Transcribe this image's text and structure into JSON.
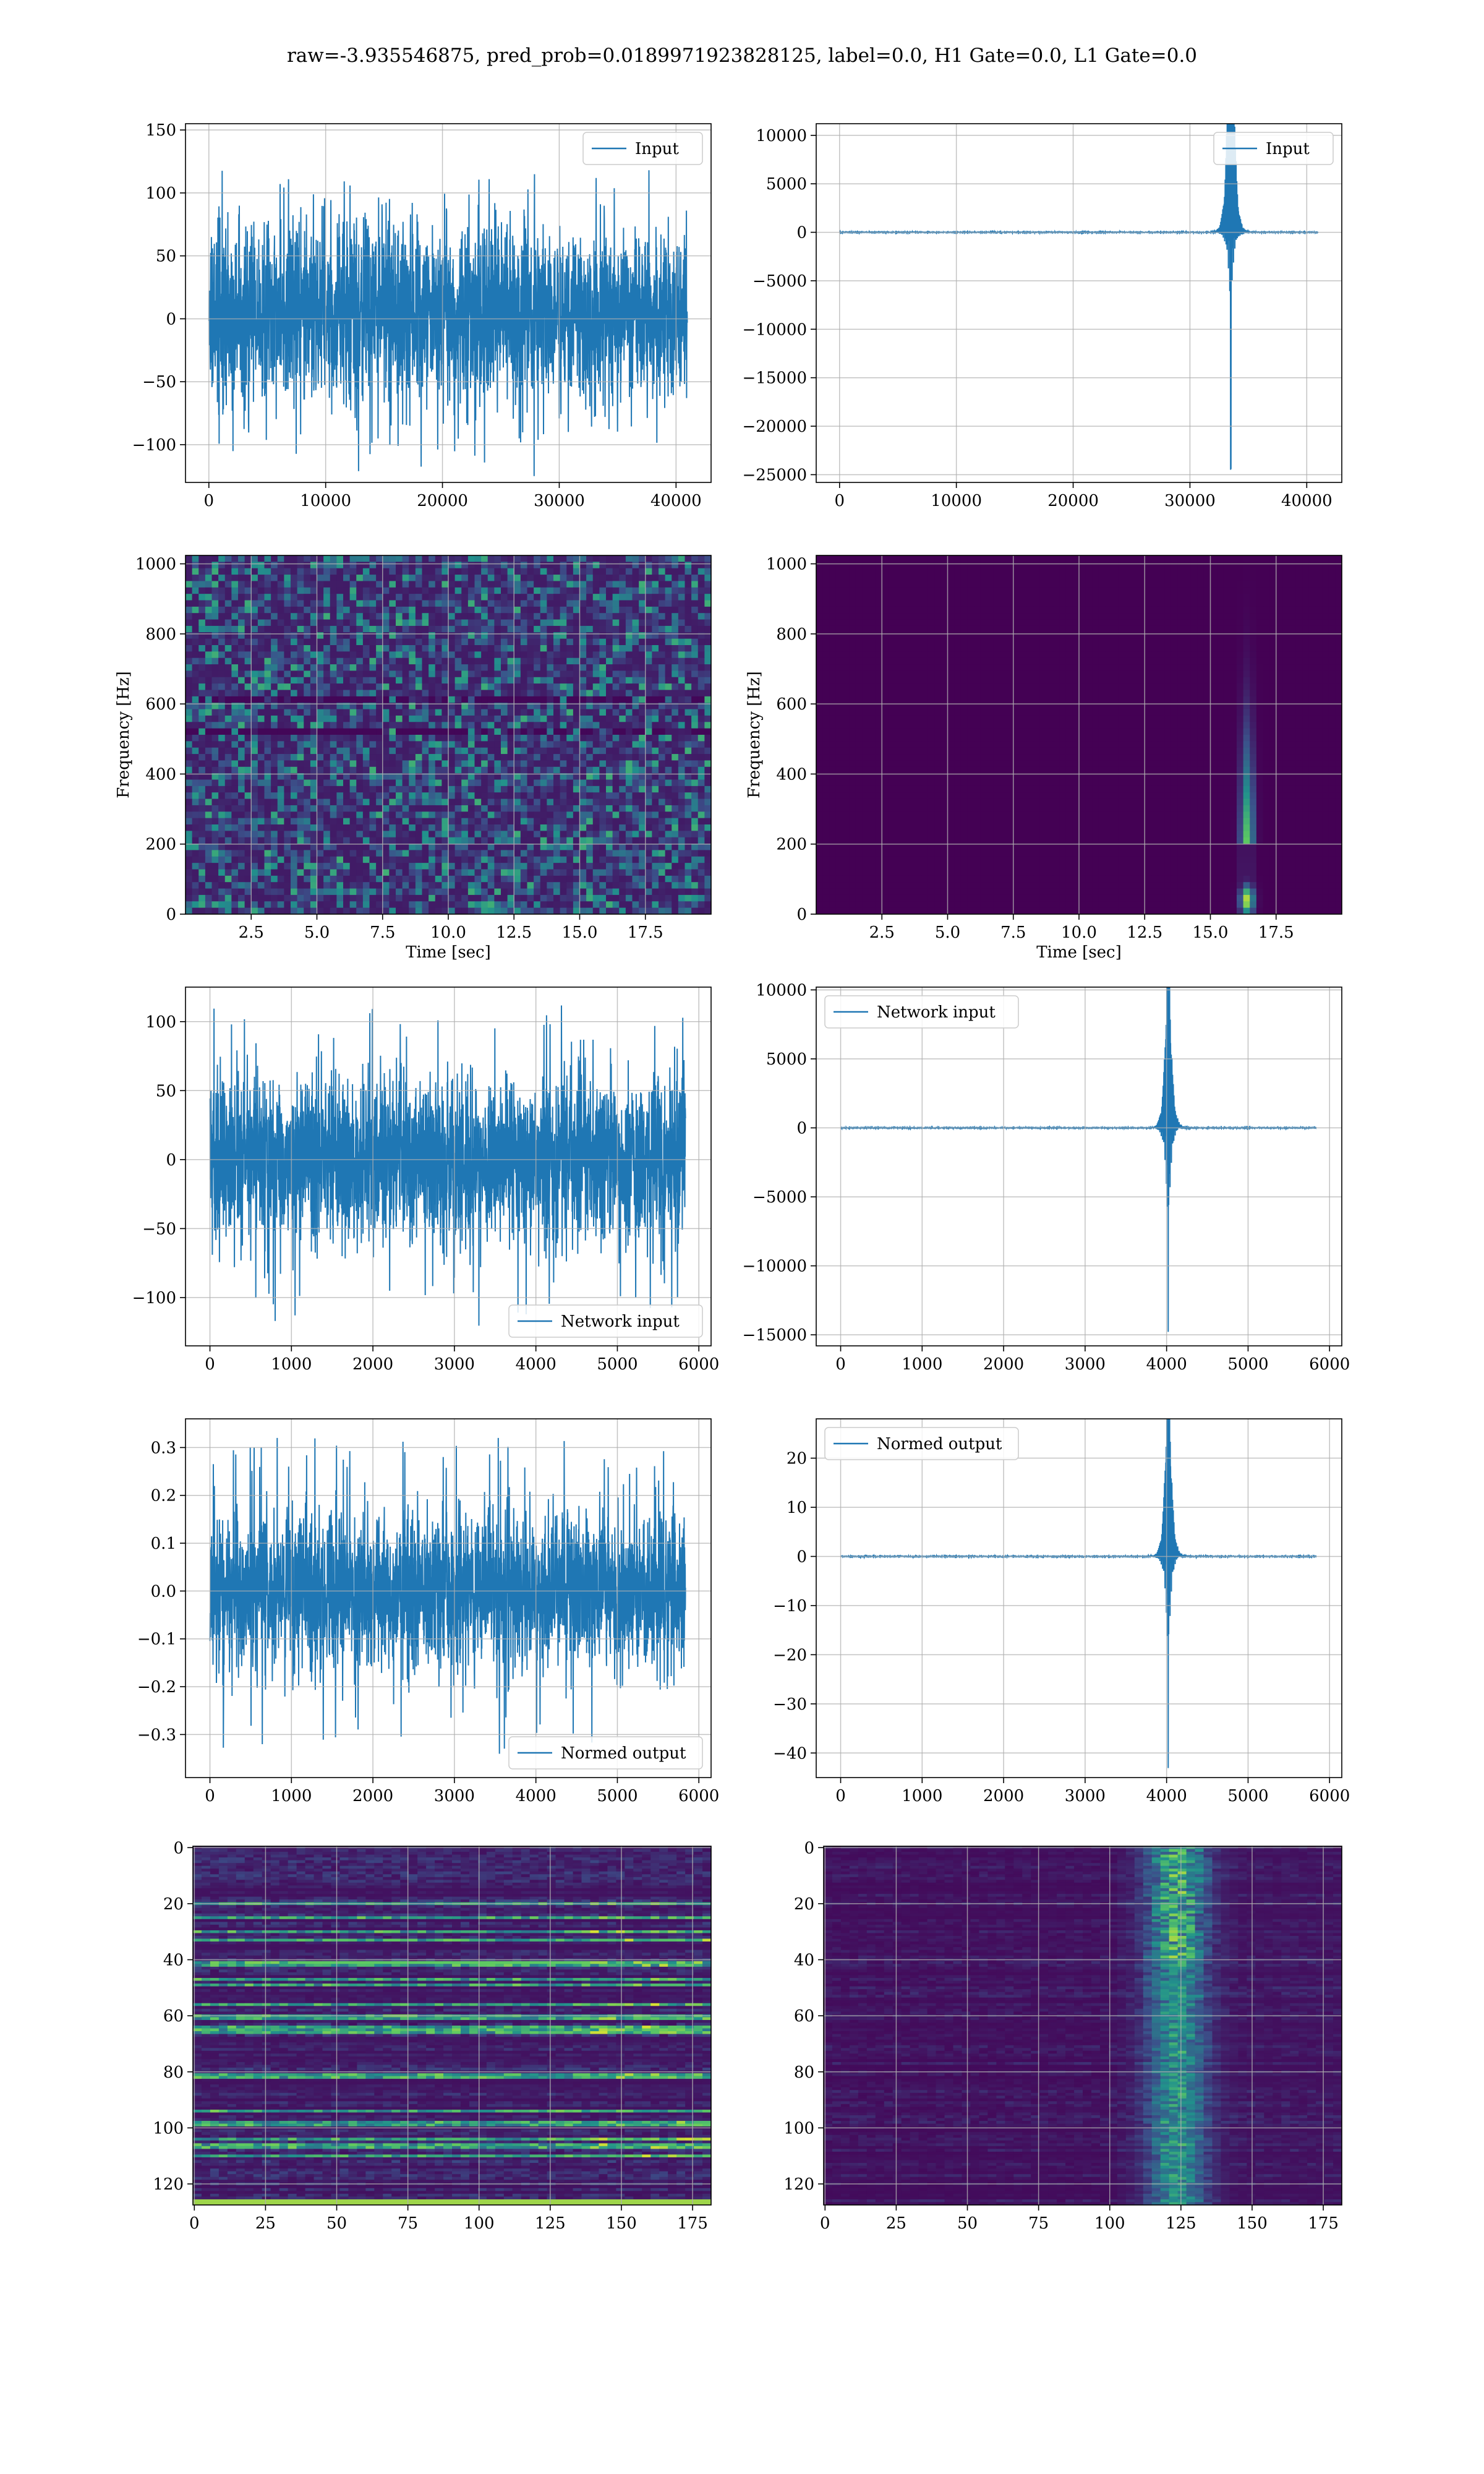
{
  "suptitle": "raw=-3.935546875, pred_prob=0.0189971923828125, label=0.0, H1 Gate=0.0, L1 Gate=0.0",
  "colors": {
    "line": "#1f77b4",
    "grid": "#b0b0b0",
    "viridis_low": "#440154",
    "viridis_mid": "#21918c",
    "viridis_high": "#fde725"
  },
  "chart_data": [
    {
      "id": "raw-left",
      "type": "line",
      "legend": "Input",
      "legend_loc": "upper right",
      "xlim": [
        -2000,
        43000
      ],
      "ylim": [
        -130,
        155
      ],
      "xticks": [
        0,
        10000,
        20000,
        30000,
        40000
      ],
      "yticks": [
        -100,
        -50,
        0,
        50,
        100,
        150
      ],
      "grid": true,
      "series": [
        {
          "x_start": 0,
          "x_end": 40960,
          "signal": "noise",
          "envelope": [
            -60,
            70
          ],
          "extremes": [
            -125,
            118
          ]
        }
      ]
    },
    {
      "id": "raw-right",
      "type": "line",
      "legend": "Input",
      "legend_loc": "upper right",
      "xlim": [
        -2000,
        43000
      ],
      "ylim": [
        -25800,
        11200
      ],
      "xticks": [
        0,
        10000,
        20000,
        30000,
        40000
      ],
      "yticks": [
        -25000,
        -20000,
        -15000,
        -10000,
        -5000,
        0,
        5000,
        10000
      ],
      "grid": true,
      "series": [
        {
          "x_start": 0,
          "x_end": 40960,
          "signal": "glitch",
          "glitch_x": 33500,
          "peak_pos": 10500,
          "peak_neg": -24500
        }
      ]
    },
    {
      "id": "spec-left",
      "type": "heatmap",
      "colormap": "viridis",
      "xlim": [
        0,
        20
      ],
      "ylim": [
        0,
        1024
      ],
      "xticks": [
        2.5,
        5.0,
        7.5,
        10.0,
        12.5,
        15.0,
        17.5
      ],
      "yticks": [
        0,
        200,
        400,
        600,
        800,
        1000
      ],
      "xlabel": "Time [sec]",
      "ylabel": "Frequency [Hz]",
      "grid": true,
      "pattern": "noise"
    },
    {
      "id": "spec-right",
      "type": "heatmap",
      "colormap": "viridis",
      "xlim": [
        0,
        20
      ],
      "ylim": [
        0,
        1024
      ],
      "xticks": [
        2.5,
        5.0,
        7.5,
        10.0,
        12.5,
        15.0,
        17.5
      ],
      "yticks": [
        0,
        200,
        400,
        600,
        800,
        1000
      ],
      "xlabel": "Time [sec]",
      "ylabel": "Frequency [Hz]",
      "grid": true,
      "pattern": "glitch",
      "hotspot": {
        "t": 16.4,
        "f": 40
      }
    },
    {
      "id": "net-left",
      "type": "line",
      "legend": "Network input",
      "legend_loc": "lower right",
      "xlim": [
        -300,
        6150
      ],
      "ylim": [
        -135,
        125
      ],
      "xticks": [
        0,
        1000,
        2000,
        3000,
        4000,
        5000,
        6000
      ],
      "yticks": [
        -100,
        -50,
        0,
        50,
        100
      ],
      "grid": true,
      "series": [
        {
          "x_start": 0,
          "x_end": 5836,
          "signal": "noise",
          "envelope": [
            -55,
            55
          ],
          "extremes": [
            -123,
            112
          ]
        }
      ]
    },
    {
      "id": "net-right",
      "type": "line",
      "legend": "Network input",
      "legend_loc": "upper left",
      "xlim": [
        -300,
        6150
      ],
      "ylim": [
        -15800,
        10200
      ],
      "xticks": [
        0,
        1000,
        2000,
        3000,
        4000,
        5000,
        6000
      ],
      "yticks": [
        -15000,
        -10000,
        -5000,
        0,
        5000,
        10000
      ],
      "grid": true,
      "series": [
        {
          "x_start": 0,
          "x_end": 5836,
          "signal": "glitch",
          "glitch_x": 4020,
          "peak_pos": 9200,
          "peak_neg": -14800
        }
      ]
    },
    {
      "id": "norm-left",
      "type": "line",
      "legend": "Normed output",
      "legend_loc": "lower right",
      "xlim": [
        -300,
        6150
      ],
      "ylim": [
        -0.39,
        0.36
      ],
      "xticks": [
        0,
        1000,
        2000,
        3000,
        4000,
        5000,
        6000
      ],
      "yticks": [
        -0.3,
        -0.2,
        -0.1,
        0.0,
        0.1,
        0.2,
        0.3
      ],
      "grid": true,
      "series": [
        {
          "x_start": 0,
          "x_end": 5836,
          "signal": "noise",
          "envelope": [
            -0.15,
            0.15
          ],
          "extremes": [
            -0.35,
            0.32
          ]
        }
      ]
    },
    {
      "id": "norm-right",
      "type": "line",
      "legend": "Normed output",
      "legend_loc": "upper left",
      "xlim": [
        -300,
        6150
      ],
      "ylim": [
        -45,
        28
      ],
      "xticks": [
        0,
        1000,
        2000,
        3000,
        4000,
        5000,
        6000
      ],
      "yticks": [
        -40,
        -30,
        -20,
        -10,
        0,
        10,
        20
      ],
      "grid": true,
      "series": [
        {
          "x_start": 0,
          "x_end": 5836,
          "signal": "glitch",
          "glitch_x": 4020,
          "peak_pos": 26,
          "peak_neg": -43
        }
      ]
    },
    {
      "id": "feat-left",
      "type": "heatmap",
      "colormap": "viridis",
      "xlim": [
        -0.5,
        181.5
      ],
      "ylim": [
        127.5,
        -0.5
      ],
      "xticks": [
        0,
        25,
        50,
        75,
        100,
        125,
        150,
        175
      ],
      "yticks": [
        0,
        20,
        40,
        60,
        80,
        100,
        120
      ],
      "grid": true,
      "pattern": "rows"
    },
    {
      "id": "feat-right",
      "type": "heatmap",
      "colormap": "viridis",
      "xlim": [
        -0.5,
        181.5
      ],
      "ylim": [
        127.5,
        -0.5
      ],
      "xticks": [
        0,
        25,
        50,
        75,
        100,
        125,
        150,
        175
      ],
      "yticks": [
        0,
        20,
        40,
        60,
        80,
        100,
        120
      ],
      "grid": true,
      "pattern": "rows-burst"
    }
  ]
}
